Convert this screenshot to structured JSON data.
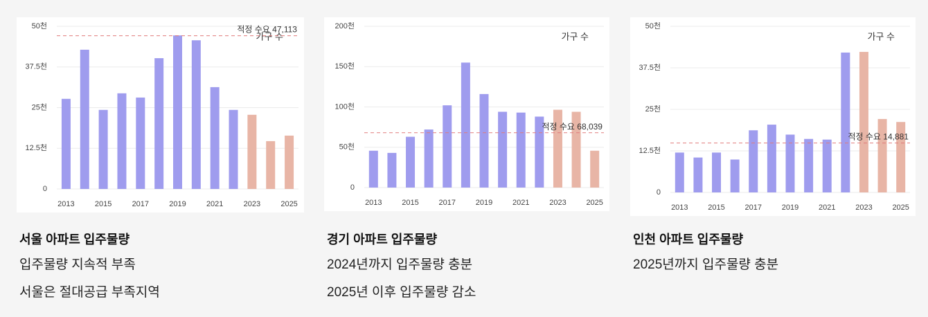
{
  "chart_data": [
    {
      "type": "bar",
      "categories": [
        "2013",
        null,
        "2015",
        null,
        "2017",
        null,
        "2019",
        null,
        "2021",
        null,
        "2023",
        null,
        "2025"
      ],
      "series": [
        {
          "name": "가구 수",
          "colors": [
            "#9f9cee",
            "#9f9cee",
            "#9f9cee",
            "#9f9cee",
            "#9f9cee",
            "#9f9cee",
            "#9f9cee",
            "#9f9cee",
            "#9f9cee",
            "#9f9cee",
            "#e8b5a6",
            "#e8b5a6",
            "#e8b5a6"
          ],
          "values": [
            27700,
            42800,
            24300,
            29400,
            28100,
            40200,
            47200,
            45700,
            31300,
            24300,
            22800,
            14700,
            16400
          ]
        }
      ],
      "ylim": [
        0,
        50000
      ],
      "yticks": [
        {
          "value": 0,
          "label": "0"
        },
        {
          "value": 12500,
          "label": "12.5천"
        },
        {
          "value": 25000,
          "label": "25천"
        },
        {
          "value": 37500,
          "label": "37.5천"
        },
        {
          "value": 50000,
          "label": "50천"
        }
      ],
      "reference": {
        "value": 47113,
        "label": "적정 수요 47,113"
      },
      "grid": true,
      "legend": "top-right"
    },
    {
      "type": "bar",
      "categories": [
        "2013",
        null,
        "2015",
        null,
        "2017",
        null,
        "2019",
        null,
        "2021",
        null,
        "2023",
        null,
        "2025"
      ],
      "series": [
        {
          "name": "가구 수",
          "colors": [
            "#9f9cee",
            "#9f9cee",
            "#9f9cee",
            "#9f9cee",
            "#9f9cee",
            "#9f9cee",
            "#9f9cee",
            "#9f9cee",
            "#9f9cee",
            "#9f9cee",
            "#e8b5a6",
            "#e8b5a6",
            "#e8b5a6"
          ],
          "values": [
            45700,
            43000,
            63000,
            72000,
            102000,
            155000,
            116000,
            94000,
            93000,
            88000,
            96500,
            94000,
            45700
          ]
        }
      ],
      "ylim": [
        0,
        200000
      ],
      "yticks": [
        {
          "value": 0,
          "label": "0"
        },
        {
          "value": 50000,
          "label": "50천"
        },
        {
          "value": 100000,
          "label": "100천"
        },
        {
          "value": 150000,
          "label": "150천"
        },
        {
          "value": 200000,
          "label": "200천"
        }
      ],
      "reference": {
        "value": 68039,
        "label": "적정 수요 68,039"
      },
      "grid": true,
      "legend": "top-right"
    },
    {
      "type": "bar",
      "categories": [
        "2013",
        null,
        "2015",
        null,
        "2017",
        null,
        "2019",
        null,
        "2021",
        null,
        "2023",
        null,
        "2025"
      ],
      "series": [
        {
          "name": "가구 수",
          "colors": [
            "#9f9cee",
            "#9f9cee",
            "#9f9cee",
            "#9f9cee",
            "#9f9cee",
            "#9f9cee",
            "#9f9cee",
            "#9f9cee",
            "#9f9cee",
            "#9f9cee",
            "#e8b5a6",
            "#e8b5a6",
            "#e8b5a6"
          ],
          "values": [
            12000,
            10500,
            12000,
            9900,
            18700,
            20400,
            17400,
            16100,
            15900,
            42100,
            42300,
            22100,
            21200
          ]
        }
      ],
      "ylim": [
        0,
        50000
      ],
      "yticks": [
        {
          "value": 0,
          "label": "0"
        },
        {
          "value": 12500,
          "label": "12.5천"
        },
        {
          "value": 25000,
          "label": "25천"
        },
        {
          "value": 37500,
          "label": "37.5천"
        },
        {
          "value": 50000,
          "label": "50천"
        }
      ],
      "reference": {
        "value": 14881,
        "label": "적정 수요 14,881"
      },
      "grid": true,
      "legend": "top-right"
    }
  ],
  "captions": [
    {
      "title": "서울 아파트 입주물량",
      "lines": [
        "입주물량 지속적 부족",
        "서울은 절대공급 부족지역"
      ]
    },
    {
      "title": "경기 아파트 입주물량",
      "lines": [
        "2024년까지 입주물량 충분",
        "2025년 이후 입주물량 감소"
      ]
    },
    {
      "title": "인천 아파트 입주물량",
      "lines": [
        "2025년까지 입주물량 충분"
      ]
    }
  ]
}
